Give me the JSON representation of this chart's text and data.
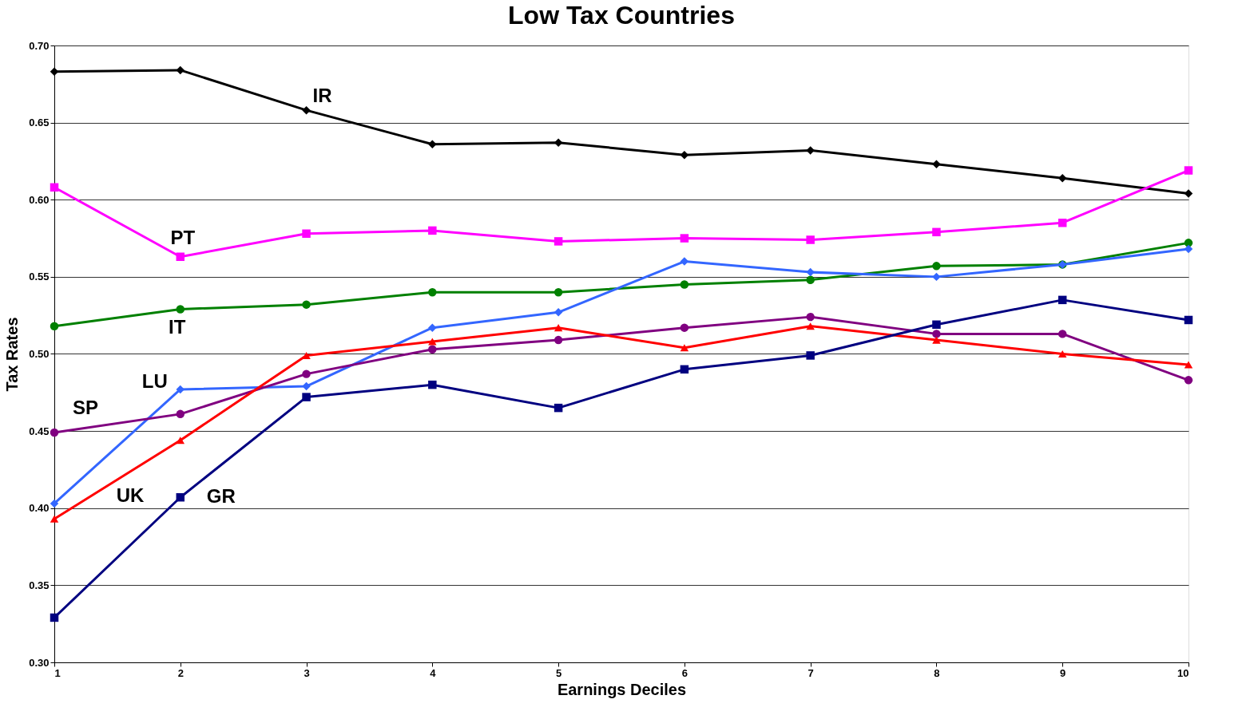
{
  "chart_data": {
    "type": "line",
    "title": "Low Tax Countries",
    "xlabel": "Earnings Deciles",
    "ylabel": "Tax Rates",
    "x": [
      1,
      2,
      3,
      4,
      5,
      6,
      7,
      8,
      9,
      10
    ],
    "xlim": [
      1,
      10
    ],
    "xticks": [
      1,
      2,
      3,
      4,
      5,
      6,
      7,
      8,
      9,
      10
    ],
    "ylim": [
      0.3,
      0.7
    ],
    "yticks": [
      {
        "value": 0.3,
        "label": "0.30"
      },
      {
        "value": 0.35,
        "label": "0.35"
      },
      {
        "value": 0.4,
        "label": "0.40"
      },
      {
        "value": 0.45,
        "label": "0.45"
      },
      {
        "value": 0.5,
        "label": "0.50"
      },
      {
        "value": 0.55,
        "label": "0.55"
      },
      {
        "value": 0.6,
        "label": "0.60"
      },
      {
        "value": 0.65,
        "label": "0.65"
      },
      {
        "value": 0.7,
        "label": "0.70"
      }
    ],
    "grid": "y",
    "line_style": "solid",
    "series": [
      {
        "name": "IR",
        "color": "#000000",
        "marker": "diamond",
        "values": [
          0.683,
          0.684,
          0.658,
          0.636,
          0.637,
          0.629,
          0.632,
          0.623,
          0.614,
          0.604
        ]
      },
      {
        "name": "PT",
        "color": "#ff00ff",
        "marker": "square",
        "values": [
          0.608,
          0.563,
          0.578,
          0.58,
          0.573,
          0.575,
          0.574,
          0.579,
          0.585,
          0.619
        ]
      },
      {
        "name": "IT",
        "color": "#008000",
        "marker": "circle",
        "values": [
          0.518,
          0.529,
          0.532,
          0.54,
          0.54,
          0.545,
          0.548,
          0.557,
          0.558,
          0.572
        ]
      },
      {
        "name": "LU",
        "color": "#3366ff",
        "marker": "diamond",
        "values": [
          0.403,
          0.477,
          0.479,
          0.517,
          0.527,
          0.56,
          0.553,
          0.55,
          0.558,
          0.568
        ]
      },
      {
        "name": "SP",
        "color": "#800080",
        "marker": "circle",
        "values": [
          0.449,
          0.461,
          0.487,
          0.503,
          0.509,
          0.517,
          0.524,
          0.513,
          0.513,
          0.483
        ]
      },
      {
        "name": "UK",
        "color": "#ff0000",
        "marker": "triangle",
        "values": [
          0.393,
          0.444,
          0.499,
          0.508,
          0.517,
          0.504,
          0.518,
          0.509,
          0.5,
          0.493
        ]
      },
      {
        "name": "GR",
        "color": "#000080",
        "marker": "square",
        "values": [
          0.329,
          0.407,
          0.472,
          0.48,
          0.465,
          0.49,
          0.499,
          0.519,
          0.535,
          0.522
        ]
      }
    ]
  }
}
